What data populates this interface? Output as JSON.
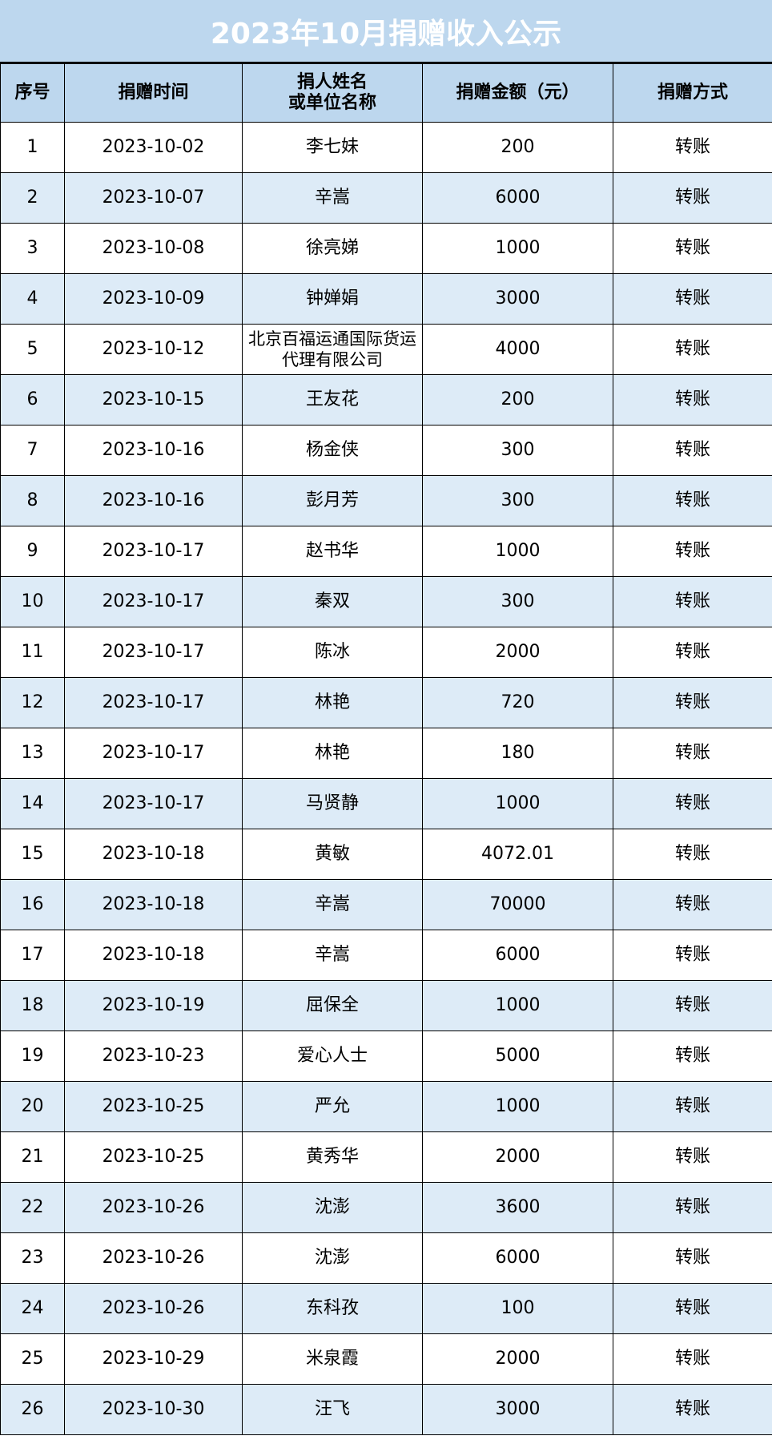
{
  "title": "2023年10月捐赠收入公示",
  "colors": {
    "header_bg": "#bdd7ee",
    "alt_row_bg": "#ddebf7",
    "title_text": "#ffffff"
  },
  "columns": [
    "序号",
    "捐赠时间",
    "捐人姓名\n或单位名称",
    "捐赠金额（元）",
    "捐赠方式"
  ],
  "rows": [
    [
      "1",
      "2023-10-02",
      "李七妹",
      "200",
      "转账"
    ],
    [
      "2",
      "2023-10-07",
      "辛嵩",
      "6000",
      "转账"
    ],
    [
      "3",
      "2023-10-08",
      "徐亮娣",
      "1000",
      "转账"
    ],
    [
      "4",
      "2023-10-09",
      "钟婵娟",
      "3000",
      "转账"
    ],
    [
      "5",
      "2023-10-12",
      "北京百福运通国际货运代理有限公司",
      "4000",
      "转账"
    ],
    [
      "6",
      "2023-10-15",
      "王友花",
      "200",
      "转账"
    ],
    [
      "7",
      "2023-10-16",
      "杨金侠",
      "300",
      "转账"
    ],
    [
      "8",
      "2023-10-16",
      "彭月芳",
      "300",
      "转账"
    ],
    [
      "9",
      "2023-10-17",
      "赵书华",
      "1000",
      "转账"
    ],
    [
      "10",
      "2023-10-17",
      "秦双",
      "300",
      "转账"
    ],
    [
      "11",
      "2023-10-17",
      "陈冰",
      "2000",
      "转账"
    ],
    [
      "12",
      "2023-10-17",
      "林艳",
      "720",
      "转账"
    ],
    [
      "13",
      "2023-10-17",
      "林艳",
      "180",
      "转账"
    ],
    [
      "14",
      "2023-10-17",
      "马贤静",
      "1000",
      "转账"
    ],
    [
      "15",
      "2023-10-18",
      "黄敏",
      "4072.01",
      "转账"
    ],
    [
      "16",
      "2023-10-18",
      "辛嵩",
      "70000",
      "转账"
    ],
    [
      "17",
      "2023-10-18",
      "辛嵩",
      "6000",
      "转账"
    ],
    [
      "18",
      "2023-10-19",
      "屈保全",
      "1000",
      "转账"
    ],
    [
      "19",
      "2023-10-23",
      "爱心人士",
      "5000",
      "转账"
    ],
    [
      "20",
      "2023-10-25",
      "严允",
      "1000",
      "转账"
    ],
    [
      "21",
      "2023-10-25",
      "黄秀华",
      "2000",
      "转账"
    ],
    [
      "22",
      "2023-10-26",
      "沈澎",
      "3600",
      "转账"
    ],
    [
      "23",
      "2023-10-26",
      "沈澎",
      "6000",
      "转账"
    ],
    [
      "24",
      "2023-10-26",
      "东科孜",
      "100",
      "转账"
    ],
    [
      "25",
      "2023-10-29",
      "米泉霞",
      "2000",
      "转账"
    ],
    [
      "26",
      "2023-10-30",
      "汪飞",
      "3000",
      "转账"
    ]
  ]
}
